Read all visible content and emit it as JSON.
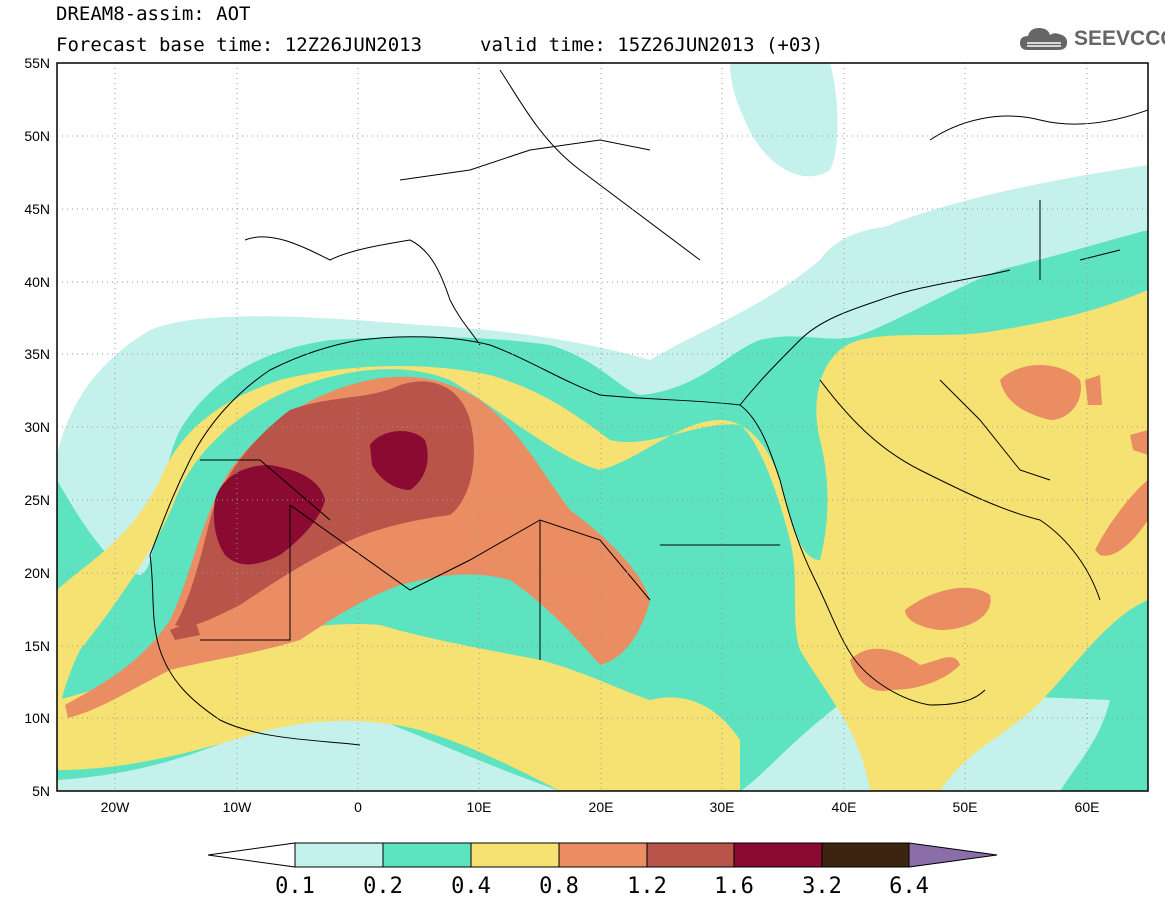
{
  "header": {
    "title": "DREAM8-assim: AOT",
    "base_time": "Forecast base time: 12Z26JUN2013",
    "valid_time": "valid time: 15Z26JUN2013 (+03)"
  },
  "logo": {
    "text": "SEEVCCC",
    "icon": "cloud-icon",
    "color": "#666666"
  },
  "map": {
    "lon_range": [
      -25,
      65
    ],
    "lat_range": [
      5,
      55
    ],
    "lat_ticks": [
      "55N",
      "50N",
      "45N",
      "40N",
      "35N",
      "30N",
      "25N",
      "20N",
      "15N",
      "10N",
      "5N"
    ],
    "lon_ticks": [
      "20W",
      "10W",
      "0",
      "10E",
      "20E",
      "30E",
      "40E",
      "50E",
      "60E"
    ],
    "grid": "dotted",
    "variable": "AOT"
  },
  "colorbar": {
    "levels": [
      "0.1",
      "0.2",
      "0.4",
      "0.8",
      "1.2",
      "1.6",
      "3.2",
      "6.4"
    ],
    "colors": [
      "#c4f1eb",
      "#5ee3c0",
      "#f6e272",
      "#eb8d62",
      "#b9544a",
      "#8a0a32",
      "#3d2411",
      "#8b6ea8"
    ]
  }
}
